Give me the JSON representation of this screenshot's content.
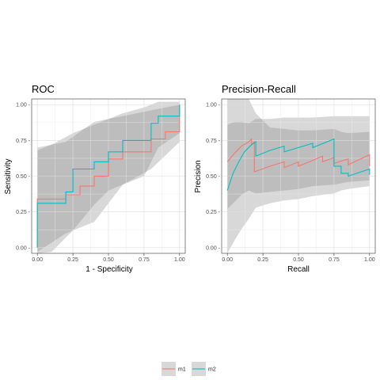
{
  "chart_data": [
    {
      "type": "line",
      "title": "ROC",
      "xlabel": "1 - Specificity",
      "ylabel": "Sensitivity",
      "xlim": [
        -0.04,
        1.04
      ],
      "ylim": [
        -0.04,
        1.04
      ],
      "xticks": [
        0,
        0.25,
        0.5,
        0.75,
        1
      ],
      "xtick_labels": [
        "0.00",
        "0.25",
        "0.50",
        "0.75",
        "1.00"
      ],
      "yticks": [
        0,
        0.25,
        0.5,
        0.75,
        1
      ],
      "ytick_labels": [
        "0.00 -",
        "0.25 -",
        "0.50 -",
        "0.75 -",
        "1.00 -"
      ],
      "grid": true,
      "series": [
        {
          "name": "m1",
          "color": "#F8766D",
          "x": [
            0,
            0,
            0.2,
            0.2,
            0.3,
            0.3,
            0.4,
            0.4,
            0.5,
            0.5,
            0.6,
            0.6,
            0.8,
            0.8,
            0.9,
            0.9,
            1,
            1
          ],
          "y": [
            0,
            0.34,
            0.34,
            0.37,
            0.37,
            0.43,
            0.43,
            0.5,
            0.5,
            0.62,
            0.62,
            0.67,
            0.67,
            0.76,
            0.76,
            0.81,
            0.81,
            1
          ],
          "band": {
            "x": [
              0,
              0.2,
              0.4,
              0.6,
              0.8,
              1
            ],
            "lower": [
              -0.03,
              0.1,
              0.18,
              0.44,
              0.55,
              0.74
            ],
            "upper": [
              0.7,
              0.74,
              0.88,
              0.92,
              0.96,
              1
            ]
          }
        },
        {
          "name": "m2",
          "color": "#00BFC4",
          "x": [
            0,
            0,
            0.2,
            0.2,
            0.25,
            0.25,
            0.4,
            0.4,
            0.5,
            0.5,
            0.6,
            0.6,
            0.8,
            0.8,
            0.85,
            0.85,
            1,
            1
          ],
          "y": [
            0,
            0.31,
            0.31,
            0.39,
            0.39,
            0.55,
            0.55,
            0.6,
            0.6,
            0.67,
            0.67,
            0.75,
            0.75,
            0.87,
            0.87,
            0.92,
            0.92,
            1
          ],
          "band": {
            "x": [
              0,
              0.1,
              0.25,
              0.4,
              0.5,
              0.6,
              0.75,
              0.85,
              1
            ],
            "lower": [
              -0.05,
              -0.03,
              0.12,
              0.3,
              0.4,
              0.44,
              0.5,
              0.7,
              0.8
            ],
            "upper": [
              0.68,
              0.72,
              0.8,
              0.86,
              0.9,
              0.94,
              0.98,
              1.02,
              1.02
            ]
          }
        }
      ]
    },
    {
      "type": "line",
      "title": "Precision-Recall",
      "xlabel": "Recall",
      "ylabel": "Precision",
      "xlim": [
        -0.04,
        1.04
      ],
      "ylim": [
        -0.04,
        1.04
      ],
      "xticks": [
        0,
        0.25,
        0.5,
        0.75,
        1
      ],
      "xtick_labels": [
        "0.00",
        "0.25",
        "0.50",
        "0.75",
        "1.00"
      ],
      "yticks": [
        0,
        0.25,
        0.5,
        0.75,
        1
      ],
      "ytick_labels": [
        "0.00 -",
        "0.25 -",
        "0.50 -",
        "0.75 -",
        "1.00 -"
      ],
      "grid": true,
      "series": [
        {
          "name": "m1",
          "color": "#F8766D",
          "x": [
            0,
            0.05,
            0.1,
            0.15,
            0.17,
            0.17,
            0.19,
            0.19,
            0.3,
            0.4,
            0.4,
            0.5,
            0.5,
            0.6,
            0.67,
            0.67,
            0.75,
            0.75,
            0.85,
            0.85,
            1,
            1
          ],
          "y": [
            0.6,
            0.66,
            0.71,
            0.74,
            0.76,
            0.72,
            0.74,
            0.53,
            0.57,
            0.6,
            0.56,
            0.6,
            0.57,
            0.61,
            0.64,
            0.6,
            0.63,
            0.59,
            0.62,
            0.58,
            0.65,
            0.57
          ],
          "band": {
            "x": [
              0,
              0.05,
              0.1,
              0.15,
              0.2,
              0.3,
              0.4,
              0.5,
              0.6,
              0.75,
              0.85,
              1
            ],
            "lower": [
              0.27,
              0.32,
              0.37,
              0.4,
              0.38,
              0.39,
              0.4,
              0.41,
              0.43,
              0.44,
              0.46,
              0.47
            ],
            "upper": [
              0.86,
              0.88,
              0.88,
              0.87,
              0.9,
              0.9,
              0.91,
              0.91,
              0.91,
              0.92,
              0.92,
              0.92
            ]
          }
        },
        {
          "name": "m2",
          "color": "#00BFC4",
          "x": [
            0,
            0.04,
            0.08,
            0.12,
            0.17,
            0.2,
            0.2,
            0.3,
            0.4,
            0.4,
            0.5,
            0.6,
            0.6,
            0.75,
            0.75,
            0.8,
            0.8,
            0.85,
            0.85,
            1,
            1
          ],
          "y": [
            0.4,
            0.52,
            0.6,
            0.67,
            0.72,
            0.74,
            0.64,
            0.68,
            0.71,
            0.67,
            0.7,
            0.73,
            0.7,
            0.76,
            0.57,
            0.57,
            0.52,
            0.52,
            0.5,
            0.55,
            0.51
          ],
          "band": {
            "x": [
              0,
              0.05,
              0.1,
              0.15,
              0.2,
              0.3,
              0.4,
              0.5,
              0.6,
              0.75,
              0.8,
              0.85,
              1
            ],
            "lower": [
              -0.04,
              0.05,
              0.13,
              0.2,
              0.28,
              0.31,
              0.33,
              0.34,
              0.36,
              0.38,
              0.4,
              0.41,
              0.43
            ],
            "upper": [
              1.04,
              1.04,
              1.04,
              1.04,
              0.94,
              0.84,
              0.83,
              0.82,
              0.82,
              0.83,
              0.81,
              0.8,
              0.81
            ]
          }
        }
      ]
    }
  ],
  "legend": {
    "position": "bottom",
    "items": [
      {
        "label": "m1",
        "color": "#F8766D"
      },
      {
        "label": "m2",
        "color": "#00BFC4"
      }
    ]
  }
}
